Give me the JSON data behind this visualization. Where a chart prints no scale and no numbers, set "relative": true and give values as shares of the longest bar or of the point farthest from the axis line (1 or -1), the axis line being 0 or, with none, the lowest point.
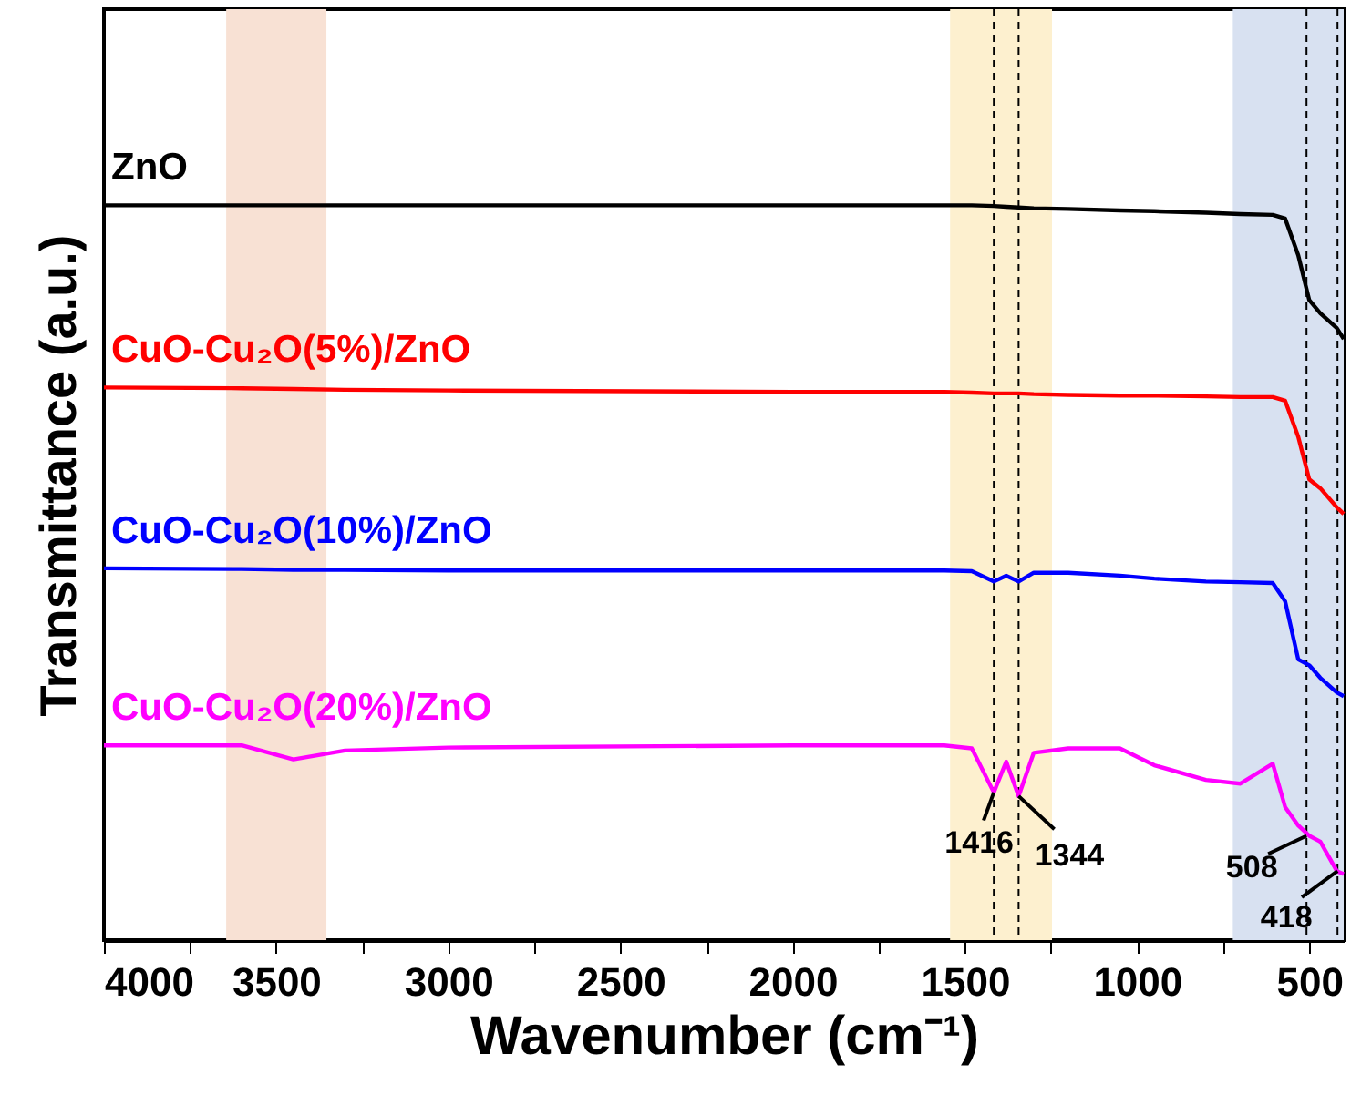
{
  "chart_data": {
    "type": "line",
    "relative": true,
    "xlabel": "Wavenumber (cm⁻¹)",
    "ylabel": "Transmittance (a.u.)",
    "xlim": [
      4000,
      400
    ],
    "xticks": [
      4000,
      {
        "value": 3750,
        "label": null
      },
      3500,
      {
        "value": 3250,
        "label": null
      },
      3000,
      {
        "value": 2750,
        "label": null
      },
      2500,
      {
        "value": 2250,
        "label": null
      },
      2000,
      {
        "value": 1750,
        "label": null
      },
      1500,
      {
        "value": 1250,
        "label": null
      },
      1000,
      {
        "value": 750,
        "label": null
      },
      500
    ],
    "x": [
      4000,
      3600,
      3450,
      3300,
      3000,
      2000,
      1560,
      1480,
      1416,
      1380,
      1344,
      1300,
      1200,
      1050,
      950,
      800,
      700,
      606,
      570,
      532,
      500,
      468,
      420,
      400
    ],
    "series": [
      {
        "name": "ZnO",
        "color": "#000000",
        "values": [
          1.0,
          1.0,
          1.0,
          1.0,
          1.0,
          1.0,
          1.0,
          1.0,
          0.999,
          0.998,
          0.997,
          0.996,
          0.995,
          0.993,
          0.992,
          0.99,
          0.988,
          0.987,
          0.982,
          0.932,
          0.871,
          0.853,
          0.833,
          0.818
        ]
      },
      {
        "name": "CuO-Cu₂O(5%)/ZnO",
        "color": "#ff0000",
        "values": [
          0.752,
          0.751,
          0.75,
          0.749,
          0.748,
          0.746,
          0.746,
          0.745,
          0.744,
          0.744,
          0.744,
          0.743,
          0.742,
          0.741,
          0.741,
          0.74,
          0.739,
          0.739,
          0.734,
          0.685,
          0.627,
          0.615,
          0.589,
          0.58
        ]
      },
      {
        "name": "CuO-Cu₂O(10%)/ZnO",
        "color": "#0000ff",
        "values": [
          0.506,
          0.505,
          0.504,
          0.504,
          0.503,
          0.503,
          0.503,
          0.502,
          0.488,
          0.496,
          0.488,
          0.5,
          0.5,
          0.496,
          0.492,
          0.488,
          0.487,
          0.486,
          0.461,
          0.382,
          0.374,
          0.357,
          0.337,
          0.332
        ]
      },
      {
        "name": "CuO-Cu₂O(20%)/ZnO",
        "color": "#ff00ff",
        "values": [
          0.265,
          0.265,
          0.246,
          0.258,
          0.262,
          0.265,
          0.265,
          0.261,
          0.201,
          0.243,
          0.196,
          0.255,
          0.261,
          0.261,
          0.238,
          0.218,
          0.213,
          0.24,
          0.181,
          0.156,
          0.142,
          0.134,
          0.094,
          0.09
        ]
      }
    ],
    "bands": [
      {
        "axis": "x",
        "from": 3645,
        "to": 3354,
        "color": "#f8e1d4"
      },
      {
        "axis": "x",
        "from": 1543,
        "to": 1247,
        "color": "#fdf0cf"
      },
      {
        "axis": "x",
        "from": 722,
        "to": 400,
        "color": "#d8e1f1"
      }
    ],
    "ref_lines": [
      {
        "axis": "x",
        "value": 1416,
        "color": "#000000",
        "line_style": "dashed"
      },
      {
        "axis": "x",
        "value": 1344,
        "color": "#000000",
        "line_style": "dashed"
      },
      {
        "axis": "x",
        "value": 508,
        "color": "#000000",
        "line_style": "dashed"
      },
      {
        "axis": "x",
        "value": 418,
        "color": "#000000",
        "line_style": "dashed"
      }
    ],
    "annotations": [
      {
        "text": "1416",
        "x": 1416,
        "y": 0.201
      },
      {
        "text": "1344",
        "x": 1344,
        "y": 0.196
      },
      {
        "text": "508",
        "x": 508,
        "y": 0.142
      },
      {
        "text": "418",
        "x": 418,
        "y": 0.094
      }
    ]
  }
}
